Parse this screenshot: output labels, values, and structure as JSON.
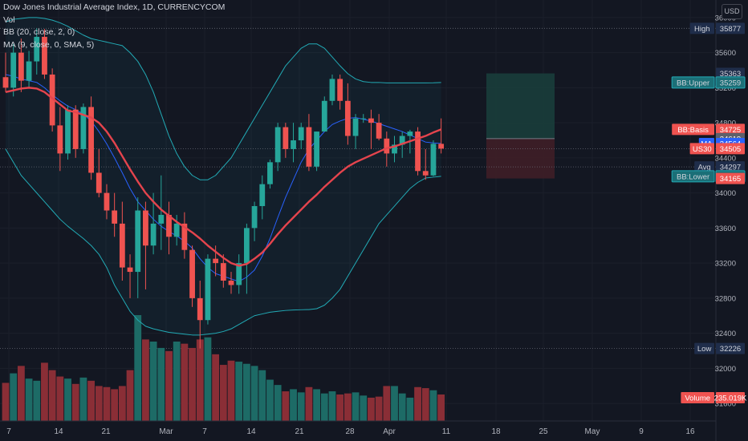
{
  "legend": {
    "symbol": "Dow Jones Industrial Average Index, 1D, CURRENCYCOM",
    "vol": "Vol",
    "bb": "BB (20, close, 2, 0)",
    "ma": "MA (9, close, 0, SMA, 5)"
  },
  "currency_button": "USD",
  "colors": {
    "background": "#131722",
    "up": "#26a69a",
    "down": "#ef5350",
    "bb_band": "#22aab5",
    "bb_basis": "#e5444d",
    "ma_line": "#2962ff",
    "volume_up": "#1d6b66",
    "volume_down": "#8a2e36",
    "long_profit": "#1a3d3b",
    "long_loss": "#3f1e27"
  },
  "chart_data": {
    "type": "candlestick",
    "y_axis": {
      "range": [
        31400,
        36200
      ],
      "ticks": [
        36000,
        35600,
        35200,
        34800,
        34400,
        34000,
        33600,
        33200,
        32800,
        32400,
        32000,
        31600
      ],
      "scale": "linear"
    },
    "x_axis": {
      "ticks": [
        "7",
        "14",
        "21",
        "Mar",
        "7",
        "14",
        "21",
        "28",
        "Apr",
        "11",
        "18",
        "25",
        "May",
        "9",
        "16"
      ]
    },
    "candles": [
      {
        "o": 35320,
        "h": 35600,
        "l": 35150,
        "c": 35200
      },
      {
        "o": 35200,
        "h": 35700,
        "l": 35100,
        "c": 35600
      },
      {
        "o": 35600,
        "h": 35760,
        "l": 35150,
        "c": 35280
      },
      {
        "o": 35280,
        "h": 35620,
        "l": 35200,
        "c": 35500
      },
      {
        "o": 35500,
        "h": 35877,
        "l": 35350,
        "c": 35780
      },
      {
        "o": 35780,
        "h": 35870,
        "l": 35300,
        "c": 35350
      },
      {
        "o": 35350,
        "h": 35420,
        "l": 34700,
        "c": 34770
      },
      {
        "o": 34770,
        "h": 34980,
        "l": 34250,
        "c": 34450
      },
      {
        "o": 34450,
        "h": 35000,
        "l": 34380,
        "c": 34950
      },
      {
        "o": 34950,
        "h": 35000,
        "l": 34400,
        "c": 34500
      },
      {
        "o": 34500,
        "h": 35020,
        "l": 34450,
        "c": 34980
      },
      {
        "o": 34980,
        "h": 35100,
        "l": 34150,
        "c": 34230
      },
      {
        "o": 34230,
        "h": 34500,
        "l": 33950,
        "c": 34000
      },
      {
        "o": 34000,
        "h": 34100,
        "l": 33700,
        "c": 33800
      },
      {
        "o": 33800,
        "h": 34000,
        "l": 33500,
        "c": 33650
      },
      {
        "o": 33650,
        "h": 33900,
        "l": 33000,
        "c": 33150
      },
      {
        "o": 33150,
        "h": 33300,
        "l": 32800,
        "c": 33100
      },
      {
        "o": 33100,
        "h": 33950,
        "l": 32800,
        "c": 33800
      },
      {
        "o": 33800,
        "h": 33900,
        "l": 32900,
        "c": 33400
      },
      {
        "o": 33400,
        "h": 34000,
        "l": 33300,
        "c": 33650
      },
      {
        "o": 33650,
        "h": 34200,
        "l": 33350,
        "c": 33750
      },
      {
        "o": 33750,
        "h": 33900,
        "l": 33300,
        "c": 33500
      },
      {
        "o": 33500,
        "h": 33750,
        "l": 33400,
        "c": 33650
      },
      {
        "o": 33650,
        "h": 33780,
        "l": 33250,
        "c": 33350
      },
      {
        "o": 33350,
        "h": 33400,
        "l": 32700,
        "c": 32800
      },
      {
        "o": 32800,
        "h": 33000,
        "l": 32226,
        "c": 32550
      },
      {
        "o": 32550,
        "h": 33300,
        "l": 32500,
        "c": 33250
      },
      {
        "o": 33250,
        "h": 33400,
        "l": 33050,
        "c": 33200
      },
      {
        "o": 33200,
        "h": 33300,
        "l": 32920,
        "c": 33000
      },
      {
        "o": 33000,
        "h": 33100,
        "l": 32850,
        "c": 32950
      },
      {
        "o": 32950,
        "h": 33300,
        "l": 32850,
        "c": 33200
      },
      {
        "o": 33200,
        "h": 33650,
        "l": 32850,
        "c": 33600
      },
      {
        "o": 33600,
        "h": 33900,
        "l": 33450,
        "c": 33850
      },
      {
        "o": 33850,
        "h": 34200,
        "l": 33700,
        "c": 34100
      },
      {
        "o": 34100,
        "h": 34380,
        "l": 34050,
        "c": 34350
      },
      {
        "o": 34350,
        "h": 34800,
        "l": 34250,
        "c": 34750
      },
      {
        "o": 34750,
        "h": 34800,
        "l": 34400,
        "c": 34500
      },
      {
        "o": 34500,
        "h": 34800,
        "l": 34350,
        "c": 34600
      },
      {
        "o": 34600,
        "h": 34800,
        "l": 34500,
        "c": 34750
      },
      {
        "o": 34750,
        "h": 34900,
        "l": 34250,
        "c": 34300
      },
      {
        "o": 34300,
        "h": 34700,
        "l": 34250,
        "c": 34700
      },
      {
        "o": 34700,
        "h": 35100,
        "l": 34700,
        "c": 35050
      },
      {
        "o": 35050,
        "h": 35350,
        "l": 35000,
        "c": 35300
      },
      {
        "o": 35300,
        "h": 35350,
        "l": 34950,
        "c": 35050
      },
      {
        "o": 35050,
        "h": 35250,
        "l": 34550,
        "c": 34650
      },
      {
        "o": 34650,
        "h": 34900,
        "l": 34500,
        "c": 34850
      },
      {
        "o": 34850,
        "h": 34900,
        "l": 34800,
        "c": 34850
      },
      {
        "o": 34850,
        "h": 34950,
        "l": 34500,
        "c": 34800
      },
      {
        "o": 34800,
        "h": 34900,
        "l": 34600,
        "c": 34620
      },
      {
        "o": 34620,
        "h": 34700,
        "l": 34300,
        "c": 34450
      },
      {
        "o": 34450,
        "h": 34650,
        "l": 34350,
        "c": 34550
      },
      {
        "o": 34550,
        "h": 34700,
        "l": 34400,
        "c": 34650
      },
      {
        "o": 34650,
        "h": 34720,
        "l": 34450,
        "c": 34700
      },
      {
        "o": 34700,
        "h": 34750,
        "l": 34200,
        "c": 34250
      },
      {
        "o": 34250,
        "h": 34500,
        "l": 34150,
        "c": 34200
      },
      {
        "o": 34200,
        "h": 34600,
        "l": 34190,
        "c": 34560
      },
      {
        "o": 34560,
        "h": 34850,
        "l": 34450,
        "c": 34505
      }
    ],
    "bb_upper": [
      35950,
      35980,
      35990,
      36000,
      36000,
      35990,
      35970,
      35940,
      35900,
      35850,
      35800,
      35760,
      35740,
      35720,
      35700,
      35680,
      35600,
      35500,
      35350,
      35150,
      34900,
      34650,
      34450,
      34300,
      34200,
      34150,
      34150,
      34200,
      34300,
      34400,
      34550,
      34700,
      34850,
      35000,
      35150,
      35300,
      35450,
      35550,
      35650,
      35700,
      35700,
      35650,
      35550,
      35450,
      35360,
      35300,
      35270,
      35260,
      35260,
      35255,
      35255,
      35255,
      35255,
      35255,
      35255,
      35256,
      35259
    ],
    "bb_basis": [
      35150,
      35170,
      35190,
      35200,
      35190,
      35150,
      35080,
      35010,
      34940,
      34920,
      34890,
      34860,
      34800,
      34700,
      34570,
      34420,
      34270,
      34130,
      34000,
      33900,
      33810,
      33740,
      33670,
      33610,
      33550,
      33480,
      33400,
      33330,
      33260,
      33200,
      33170,
      33190,
      33250,
      33320,
      33420,
      33530,
      33630,
      33720,
      33810,
      33900,
      33980,
      34070,
      34150,
      34230,
      34300,
      34350,
      34390,
      34430,
      34470,
      34510,
      34530,
      34560,
      34590,
      34620,
      34650,
      34690,
      34725
    ],
    "bb_lower": [
      34500,
      34350,
      34200,
      34100,
      34000,
      33900,
      33800,
      33700,
      33620,
      33550,
      33480,
      33400,
      33300,
      33150,
      32950,
      32800,
      32650,
      32550,
      32480,
      32450,
      32430,
      32410,
      32400,
      32390,
      32380,
      32380,
      32390,
      32400,
      32420,
      32450,
      32500,
      32550,
      32600,
      32620,
      32640,
      32650,
      32660,
      32665,
      32668,
      32670,
      32680,
      32720,
      32800,
      32900,
      33050,
      33200,
      33350,
      33500,
      33650,
      33750,
      33850,
      33950,
      34050,
      34120,
      34170,
      34180,
      34190
    ],
    "ma": [
      35350,
      35330,
      35300,
      35280,
      35260,
      35200,
      35120,
      35050,
      34990,
      34950,
      34900,
      34820,
      34700,
      34560,
      34400,
      34230,
      34050,
      33900,
      33800,
      33700,
      33620,
      33560,
      33510,
      33450,
      33370,
      33250,
      33150,
      33080,
      33050,
      33020,
      32990,
      33040,
      33120,
      33280,
      33480,
      33720,
      33950,
      34150,
      34350,
      34500,
      34600,
      34700,
      34780,
      34820,
      34850,
      34860,
      34840,
      34820,
      34790,
      34760,
      34730,
      34700,
      34660,
      34620,
      34580,
      34570,
      34564
    ],
    "volumes": [
      0.36,
      0.45,
      0.52,
      0.4,
      0.38,
      0.55,
      0.48,
      0.42,
      0.4,
      0.35,
      0.41,
      0.38,
      0.33,
      0.32,
      0.3,
      0.33,
      0.48,
      1.0,
      0.77,
      0.75,
      0.69,
      0.66,
      0.75,
      0.73,
      0.69,
      0.77,
      0.79,
      0.63,
      0.53,
      0.57,
      0.56,
      0.54,
      0.52,
      0.48,
      0.39,
      0.34,
      0.28,
      0.3,
      0.27,
      0.32,
      0.3,
      0.26,
      0.28,
      0.25,
      0.26,
      0.27,
      0.24,
      0.22,
      0.23,
      0.33,
      0.33,
      0.26,
      0.22,
      0.32,
      0.31,
      0.29,
      0.25
    ],
    "horizontal_lines": [
      35877,
      34505,
      34297,
      32226
    ],
    "long_position": {
      "target": 35363,
      "entry": 34619,
      "stop": 34165
    },
    "price_labels": [
      {
        "text": "High",
        "value": "35877",
        "y": 35877,
        "tag_color": "#1f2d4a",
        "val_color": "#1f2d4a",
        "text_color": "#d1d4dc"
      },
      {
        "text": "",
        "value": "35363",
        "y": 35363,
        "tag_color": "#1f2d4a",
        "val_color": "#1f2d4a",
        "text_color": "#d1d4dc"
      },
      {
        "text": "BB:Upper",
        "value": "35259",
        "y": 35259,
        "tag_color": "#1b6f77",
        "val_color": "#1b6f77",
        "text_color": "#d1d4dc",
        "outline": true
      },
      {
        "text": "BB:Basis",
        "value": "34725",
        "y": 34725,
        "tag_color": "#ef5350",
        "val_color": "#ef5350",
        "text_color": "#ffffff"
      },
      {
        "text": "",
        "value": "34619",
        "y": 34619,
        "tag_color": "#5d606b",
        "val_color": "#5d606b",
        "text_color": "#ffffff"
      },
      {
        "text": "MA",
        "value": "34564",
        "y": 34564,
        "tag_color": "#2962ff",
        "val_color": "#2962ff",
        "text_color": "#ffffff"
      },
      {
        "text": "US30",
        "value": "34505",
        "y": 34505,
        "tag_color": "#ef5350",
        "val_color": "#ef5350",
        "text_color": "#ffffff"
      },
      {
        "text": "Avg",
        "value": "34297",
        "y": 34297,
        "tag_color": "#1f2d4a",
        "val_color": "#1f2d4a",
        "text_color": "#d1d4dc"
      },
      {
        "text": "BB:Lower",
        "value": "34190",
        "y": 34190,
        "tag_color": "#1b6f77",
        "val_color": "#1b6f77",
        "text_color": "#d1d4dc",
        "outline": true
      },
      {
        "text": "",
        "value": "34165",
        "y": 34165,
        "tag_color": "#ef5350",
        "val_color": "#ef5350",
        "text_color": "#ffffff"
      },
      {
        "text": "Low",
        "value": "32226",
        "y": 32226,
        "tag_color": "#1f2d4a",
        "val_color": "#1f2d4a",
        "text_color": "#d1d4dc"
      },
      {
        "text": "Volume",
        "value": "235.019K",
        "y": null,
        "tag_color": "#ef5350",
        "val_color": "#ef5350",
        "text_color": "#ffffff"
      }
    ]
  }
}
